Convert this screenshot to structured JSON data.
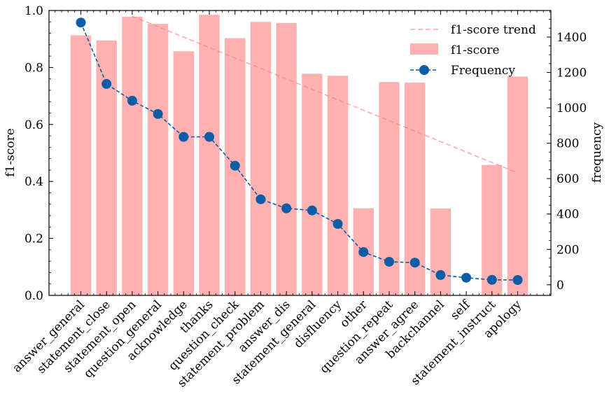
{
  "chart_data": {
    "type": "bar",
    "categories": [
      "answer_general",
      "statement_close",
      "statement_open",
      "question_general",
      "acknowledge",
      "thanks",
      "question_check",
      "statement_problem",
      "answer_dis",
      "statement_general",
      "disfluency",
      "other",
      "question_repeat",
      "answer_agree",
      "backchannel",
      "self",
      "statement_instruct",
      "apology"
    ],
    "series": [
      {
        "name": "f1-score",
        "type": "bar",
        "axis": "left",
        "color": "#ffb0b0",
        "values": [
          0.913,
          0.895,
          0.978,
          0.953,
          0.857,
          0.985,
          0.903,
          0.96,
          0.956,
          0.778,
          0.771,
          0.306,
          0.749,
          0.747,
          0.305,
          0.0,
          0.458,
          0.768
        ]
      },
      {
        "name": "Frequency",
        "type": "line",
        "axis": "right",
        "color": "#0c5da5",
        "marker": "circle",
        "linestyle": "dashed",
        "values": [
          1482,
          1135,
          1040,
          965,
          836,
          836,
          673,
          483,
          432,
          420,
          344,
          185,
          130,
          125,
          55,
          40,
          28,
          27
        ]
      }
    ],
    "trend": {
      "name": "f1-score trend",
      "color": "#ff7f7f",
      "linestyle": "dashed",
      "start": 0.98,
      "end": 0.43,
      "from_category": "statement_open",
      "to_category": "apology"
    },
    "ylabel": "f1-score",
    "ylim": [
      0,
      1.0
    ],
    "yticks": [
      "0.0",
      "0.2",
      "0.4",
      "0.6",
      "0.8",
      "1.0"
    ],
    "y2label": "frequency",
    "y2lim": [
      -60,
      1550
    ],
    "y2ticks": [
      "0",
      "200",
      "400",
      "600",
      "800",
      "1000",
      "1200",
      "1400"
    ],
    "legend": [
      "f1-score trend",
      "f1-score",
      "Frequency"
    ],
    "legend_position": "top-right",
    "grid": false
  }
}
